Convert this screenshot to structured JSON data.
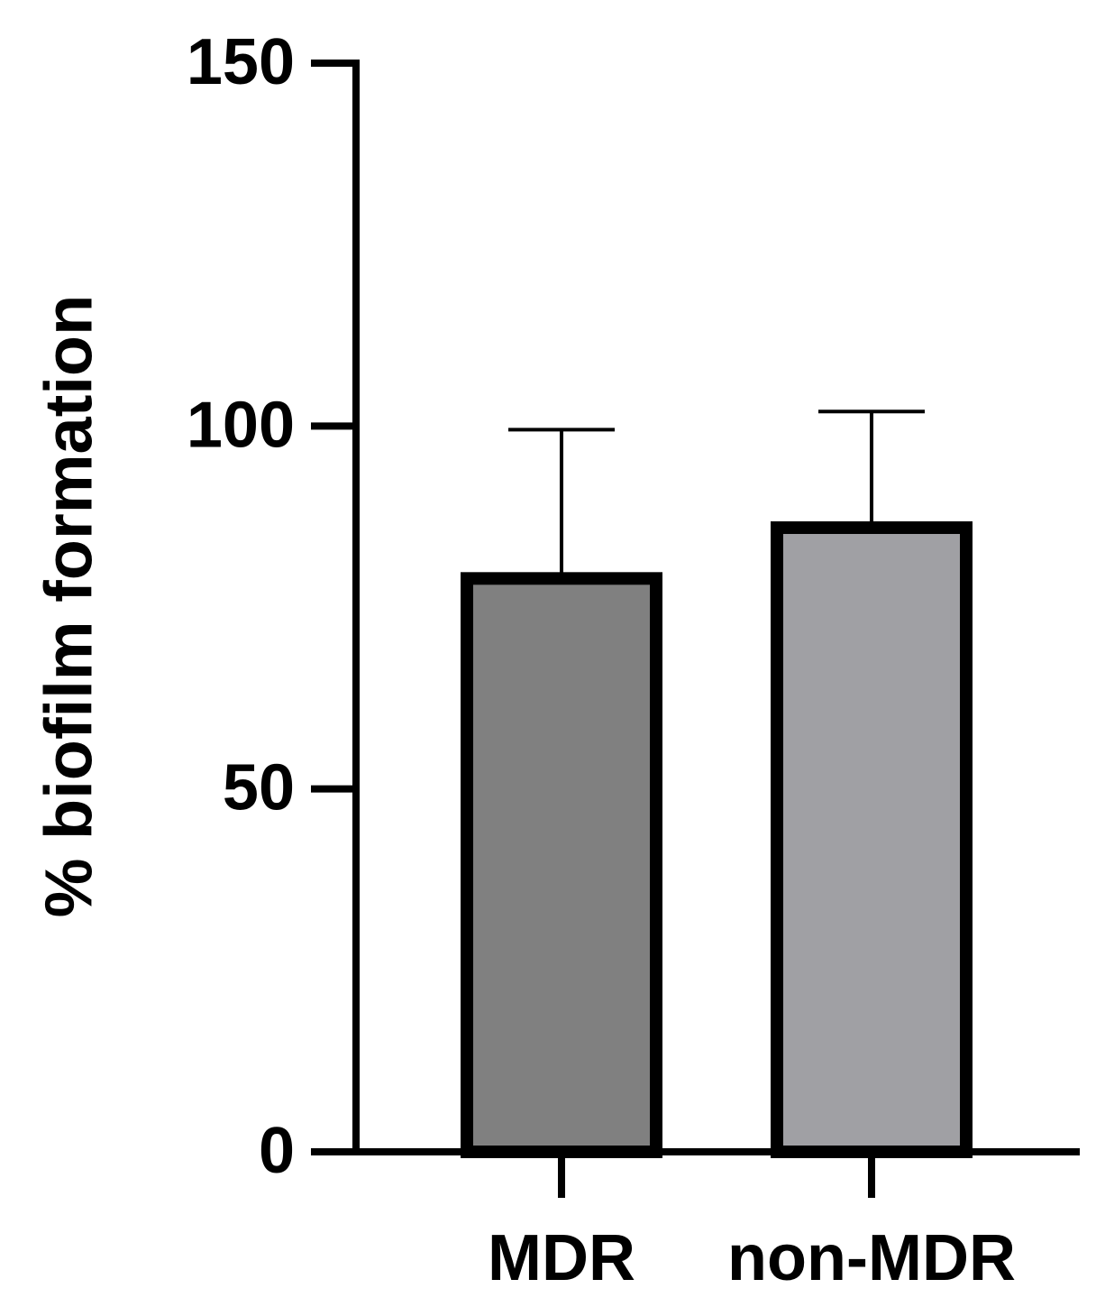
{
  "chart_data": {
    "type": "bar",
    "y_label": "% biofilm formation",
    "categories": [
      "MDR",
      "non-MDR"
    ],
    "values": [
      79,
      86
    ],
    "errors": [
      20.5,
      16
    ],
    "colors": [
      "#808080",
      "#a0a0a4"
    ],
    "ylim": [
      0,
      150
    ],
    "yticks": [
      0,
      50,
      100,
      150
    ]
  }
}
